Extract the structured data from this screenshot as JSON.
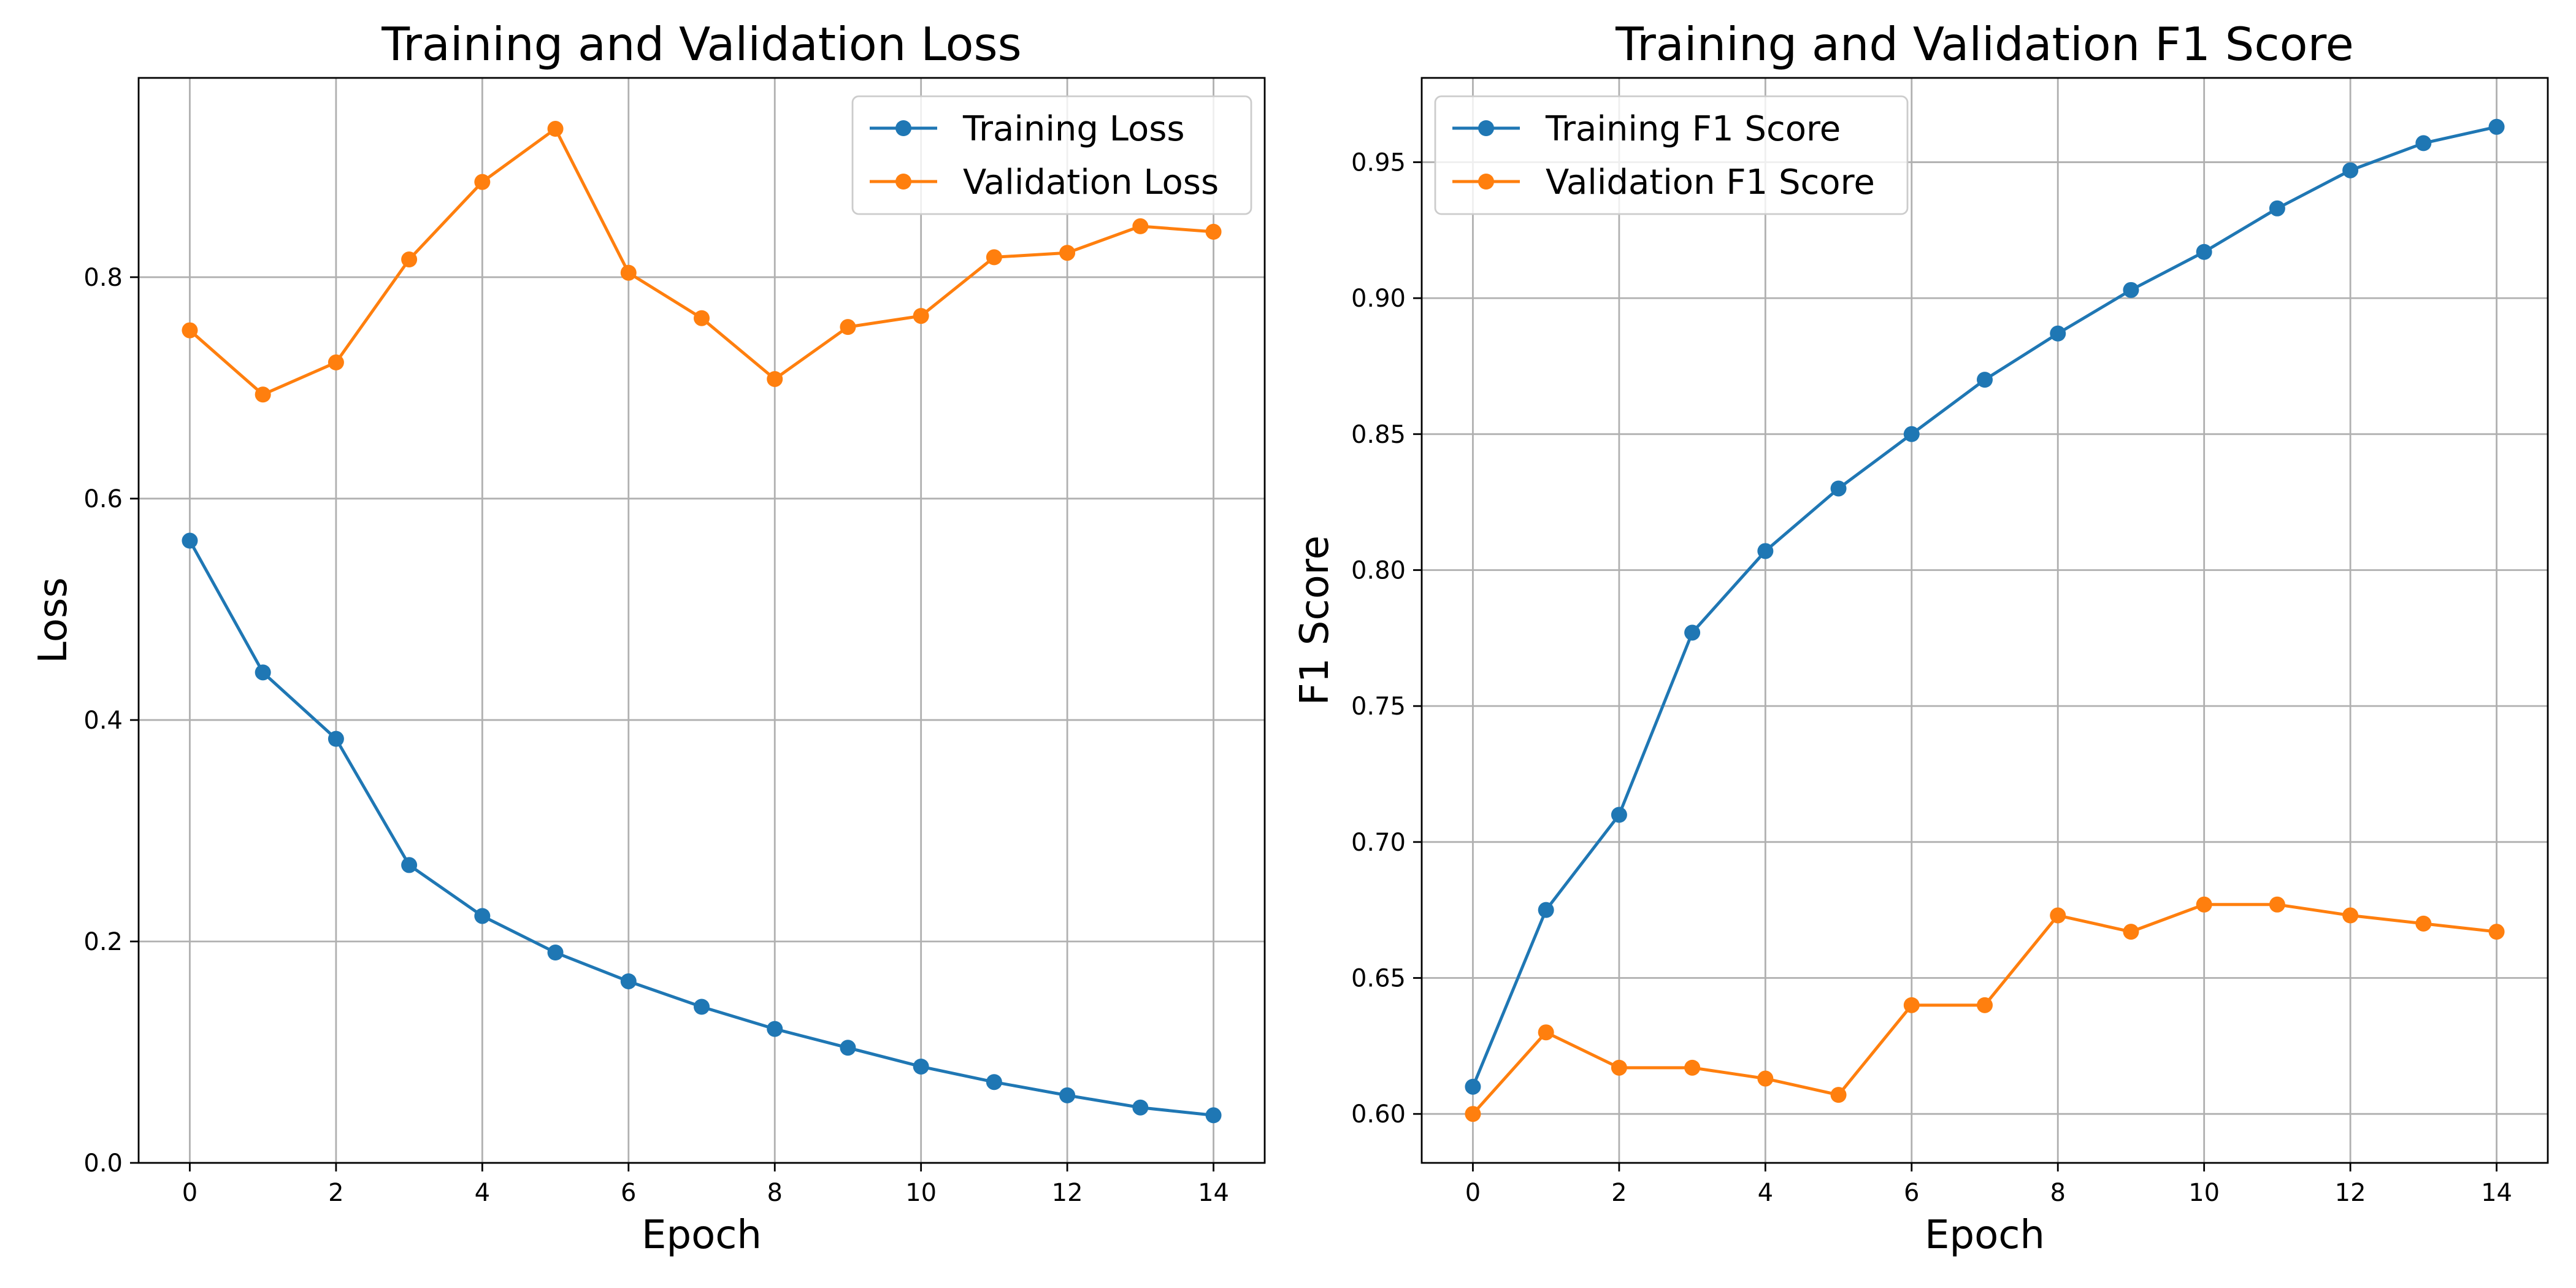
{
  "chart_data": [
    {
      "type": "line",
      "title": "Training and Validation Loss",
      "xlabel": "Epoch",
      "ylabel": "Loss",
      "xlim": [
        -0.7,
        14.7
      ],
      "ylim": [
        0.0,
        0.98
      ],
      "xticks": [
        0,
        2,
        4,
        6,
        8,
        10,
        12,
        14
      ],
      "yticks": [
        0.0,
        0.2,
        0.4,
        0.6,
        0.8
      ],
      "ytick_decimals": 1,
      "grid": true,
      "legend_position": "top-right",
      "x": [
        0,
        1,
        2,
        3,
        4,
        5,
        6,
        7,
        8,
        9,
        10,
        11,
        12,
        13,
        14
      ],
      "series": [
        {
          "name": "Training Loss",
          "color": "#1f77b4",
          "values": [
            0.562,
            0.443,
            0.383,
            0.269,
            0.223,
            0.19,
            0.164,
            0.141,
            0.121,
            0.104,
            0.087,
            0.073,
            0.061,
            0.05,
            0.043
          ]
        },
        {
          "name": "Validation Loss",
          "color": "#ff7f0e",
          "values": [
            0.752,
            0.694,
            0.723,
            0.816,
            0.886,
            0.934,
            0.804,
            0.763,
            0.708,
            0.755,
            0.765,
            0.818,
            0.822,
            0.846,
            0.841
          ]
        }
      ]
    },
    {
      "type": "line",
      "title": "Training and Validation F1 Score",
      "xlabel": "Epoch",
      "ylabel": "F1 Score",
      "xlim": [
        -0.7,
        14.7
      ],
      "ylim": [
        0.582,
        0.981
      ],
      "xticks": [
        0,
        2,
        4,
        6,
        8,
        10,
        12,
        14
      ],
      "yticks": [
        0.6,
        0.65,
        0.7,
        0.75,
        0.8,
        0.85,
        0.9,
        0.95
      ],
      "ytick_decimals": 2,
      "grid": true,
      "legend_position": "top-left",
      "x": [
        0,
        1,
        2,
        3,
        4,
        5,
        6,
        7,
        8,
        9,
        10,
        11,
        12,
        13,
        14
      ],
      "series": [
        {
          "name": "Training F1 Score",
          "color": "#1f77b4",
          "values": [
            0.61,
            0.675,
            0.71,
            0.777,
            0.807,
            0.83,
            0.85,
            0.87,
            0.887,
            0.903,
            0.917,
            0.933,
            0.947,
            0.957,
            0.963
          ]
        },
        {
          "name": "Validation F1 Score",
          "color": "#ff7f0e",
          "values": [
            0.6,
            0.63,
            0.617,
            0.617,
            0.613,
            0.607,
            0.64,
            0.64,
            0.673,
            0.667,
            0.677,
            0.677,
            0.673,
            0.67,
            0.667
          ]
        }
      ]
    }
  ]
}
